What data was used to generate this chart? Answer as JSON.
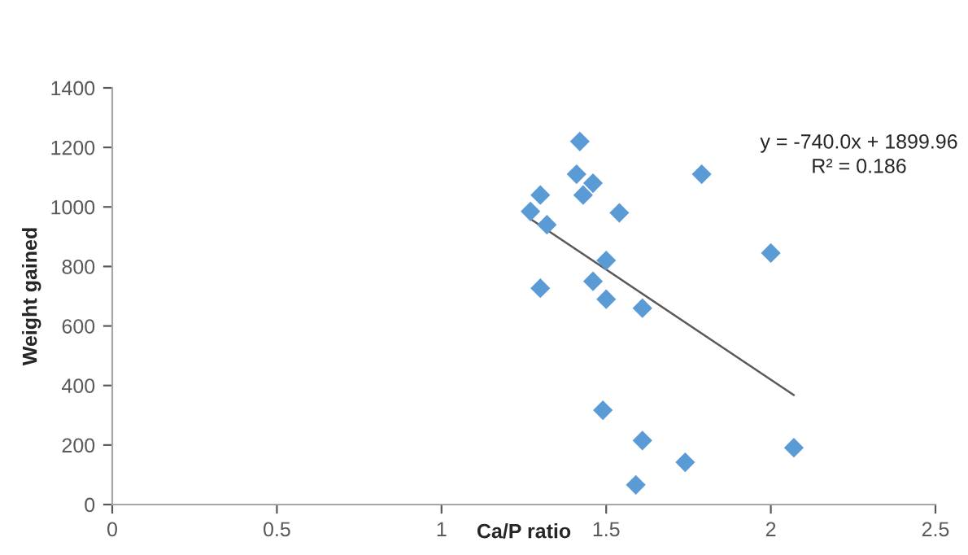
{
  "chart_data": {
    "type": "scatter",
    "xlabel": "Ca/P ratio",
    "ylabel": "Weight gained",
    "xlim": [
      0,
      2.5
    ],
    "xticks": [
      0,
      0.5,
      1,
      1.5,
      2,
      2.5
    ],
    "ylim": [
      0,
      1400
    ],
    "yticks": [
      0,
      200,
      400,
      600,
      800,
      1000,
      1200,
      1400
    ],
    "grid": false,
    "legend": false,
    "marker": "diamond",
    "series": [
      {
        "color": "#5b9bd5",
        "x": [
          1.42,
          1.41,
          1.46,
          1.43,
          1.3,
          1.54,
          1.27,
          1.32,
          1.79,
          2.0,
          1.5,
          1.3,
          1.46,
          1.5,
          1.61,
          1.49,
          1.61,
          1.74,
          1.59,
          2.07
        ],
        "values": [
          1220,
          1110,
          1080,
          1040,
          1040,
          980,
          985,
          940,
          1110,
          845,
          820,
          727,
          750,
          690,
          660,
          317,
          215,
          142,
          66,
          191
        ]
      },
      {
        "type": "line",
        "color": "#595959",
        "marker": "none",
        "x": [
          1.27,
          2.07
        ],
        "values": [
          960,
          368
        ]
      }
    ],
    "annotations": [
      "y = -740.0x + 1899.96",
      "R² = 0.186"
    ]
  }
}
